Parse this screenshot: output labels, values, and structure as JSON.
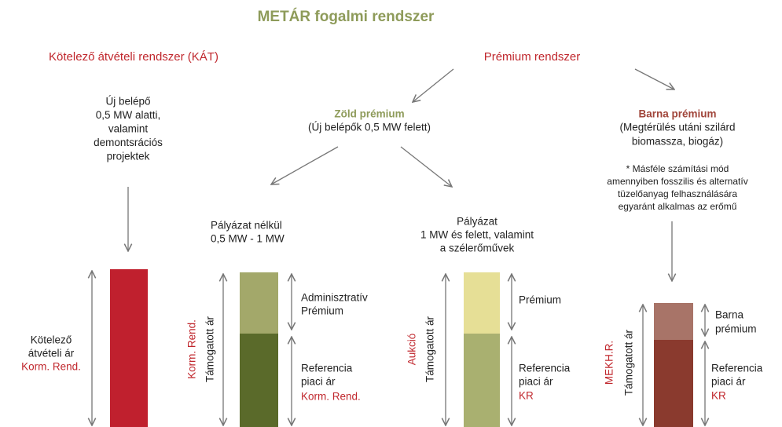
{
  "title": "METÁR fogalmi rendszer",
  "kat": {
    "title": "Kötelező átvételi rendszer (KÁT)",
    "description": [
      "Új belépő",
      "0,5 MW alatti,",
      "valamint",
      "demontsrációs",
      "projektek"
    ],
    "price": [
      "Kötelező",
      "átvételi ár"
    ],
    "source": "Korm. Rend."
  },
  "premium": {
    "title": "Prémium rendszer",
    "zold": {
      "title": "Zöld prémium",
      "subtitle": "(Új belépők 0,5 MW felett)",
      "no_tender": {
        "heading": [
          "Pályázat nélkül",
          "0,5 MW - 1 MW"
        ],
        "axis": "Támogatott ár",
        "source": "Korm. Rend.",
        "top": [
          "Adminisztratív",
          "Prémium"
        ],
        "bottom": [
          "Referencia",
          "piaci ár"
        ],
        "bottom_source": "Korm. Rend."
      },
      "tender": {
        "heading": [
          "Pályázat",
          "1 MW és felett, valamint",
          "a szélerőművek"
        ],
        "axis": "Támogatott ár",
        "source": "Aukció",
        "top": [
          "Prémium"
        ],
        "bottom": [
          "Referencia",
          "piaci ár"
        ],
        "bottom_source": "KR"
      }
    },
    "barna": {
      "title": "Barna prémium",
      "subtitle": [
        "(Megtérülés utáni szilárd",
        "biomassza, biogáz)"
      ],
      "note": [
        "* Másféle számítási mód",
        "amennyiben fosszilis és alternatív",
        "tüzelőanyag felhasználására",
        "egyaránt alkalmas az erőmű"
      ],
      "axis": "Támogatott ár",
      "source": "MEKH.R.",
      "top": [
        "Barna",
        "prémium"
      ],
      "bottom": [
        "Referencia",
        "piaci ár"
      ],
      "bottom_source": "KR"
    }
  }
}
